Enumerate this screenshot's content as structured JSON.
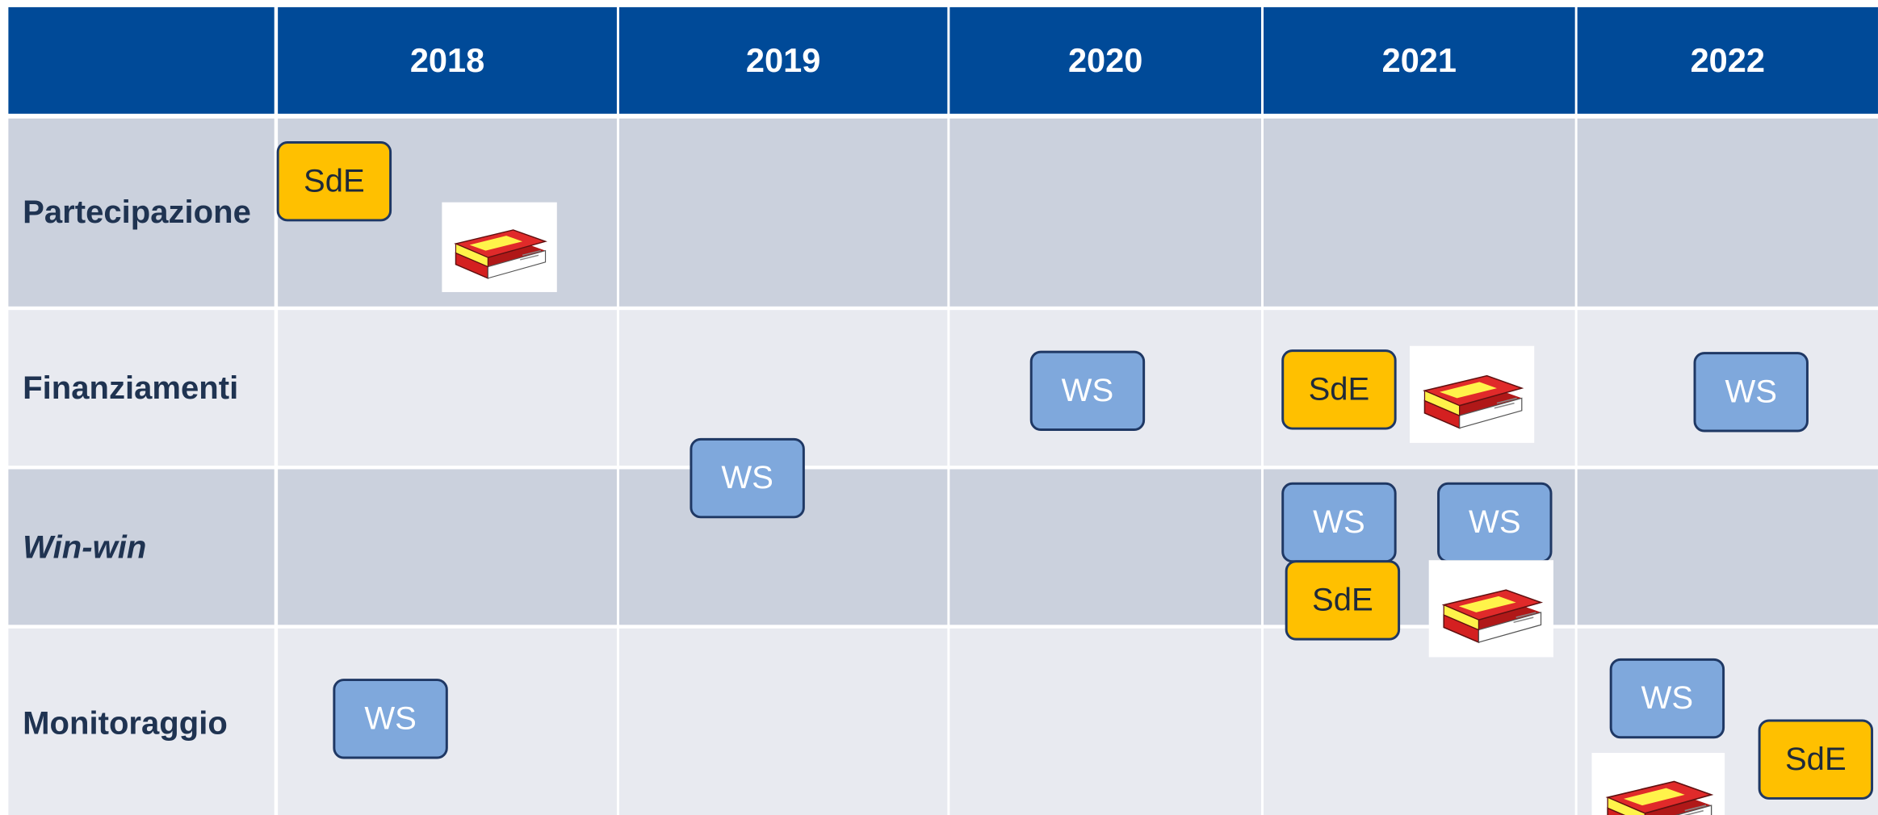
{
  "header": {
    "years": [
      "2018",
      "2019",
      "2020",
      "2021",
      "2022"
    ]
  },
  "rows": [
    {
      "label": "Partecipazione",
      "items": [
        "SdE"
      ]
    },
    {
      "label": "Finanziamenti",
      "items": [
        "WS",
        "WS",
        "SdE",
        "WS"
      ]
    },
    {
      "label": "Win-win",
      "items": [
        "WS",
        "WS",
        "SdE"
      ]
    },
    {
      "label": "Monitoraggio",
      "items": [
        "WS",
        "WS",
        "SdE"
      ]
    }
  ]
}
